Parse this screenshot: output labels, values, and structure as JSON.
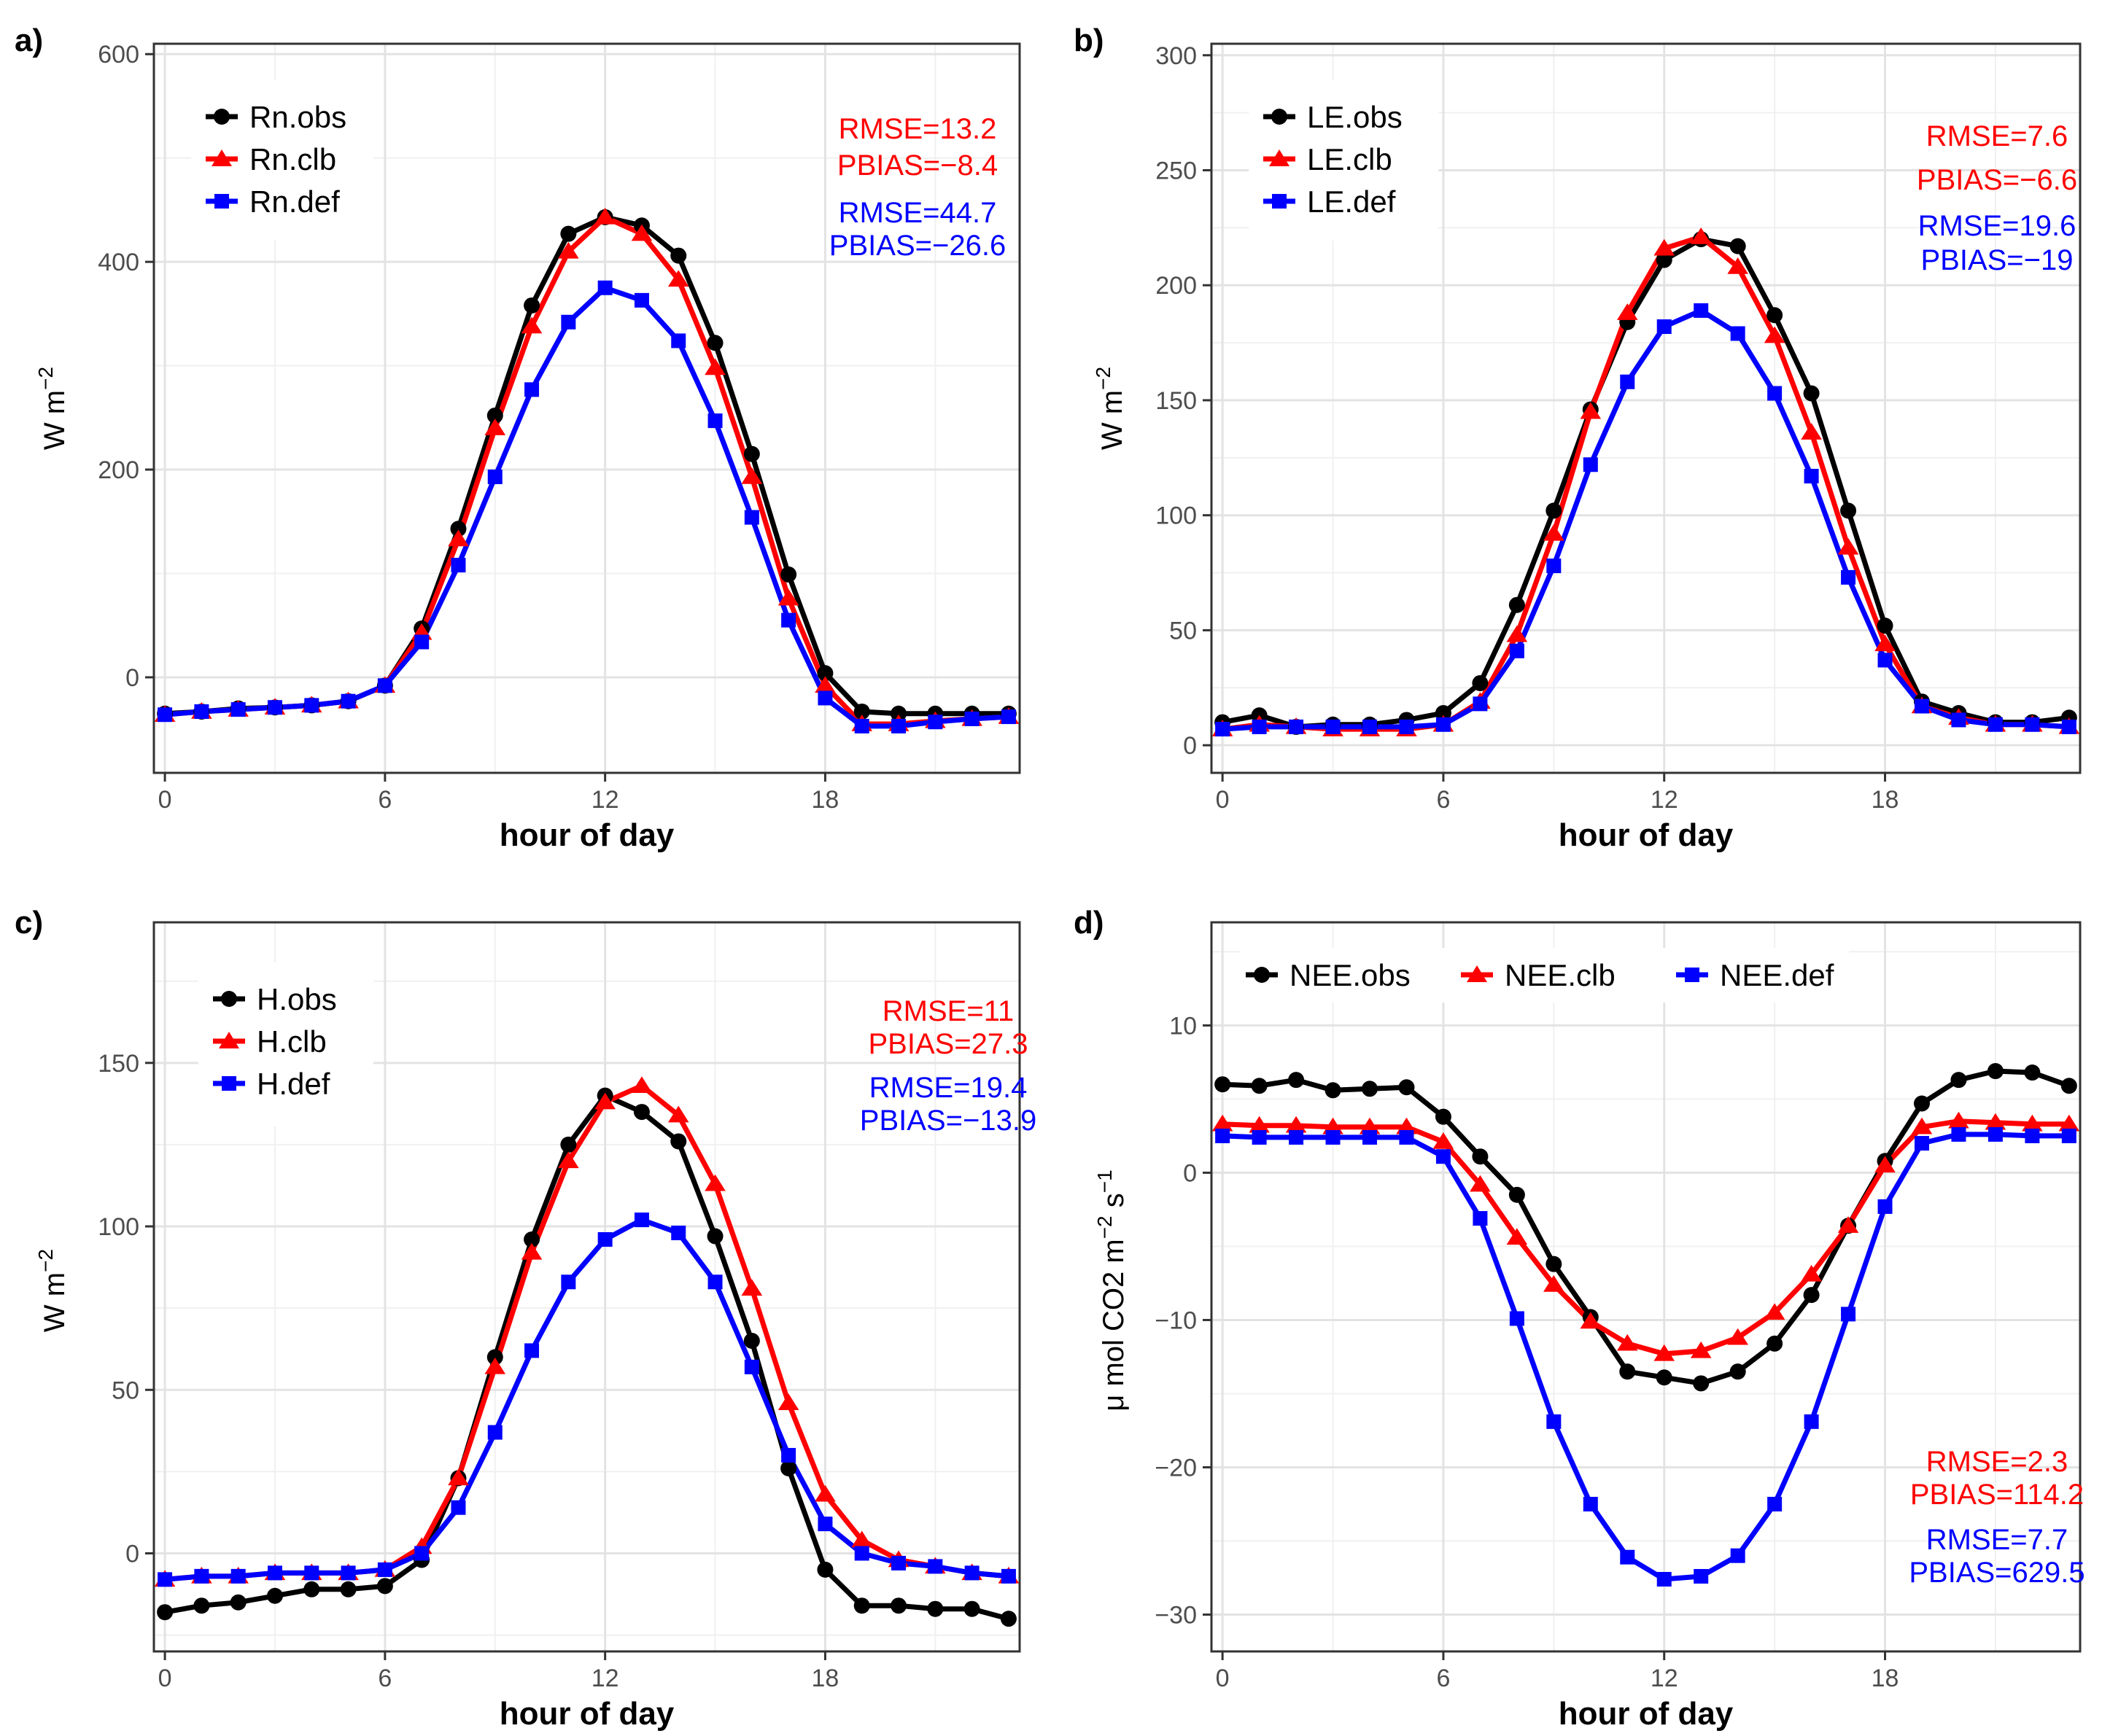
{
  "chart_data": [
    {
      "type": "line",
      "panel_label": "a)",
      "xlabel": "hour of day",
      "ylabel": {
        "base": "W m",
        "sup": "−2"
      },
      "x": [
        0,
        1,
        2,
        3,
        4,
        5,
        6,
        7,
        8,
        9,
        10,
        11,
        12,
        13,
        14,
        15,
        16,
        17,
        18,
        19,
        20,
        21,
        22,
        23
      ],
      "xlim": [
        -0.3,
        23.3
      ],
      "xticks": [
        0,
        6,
        12,
        18
      ],
      "xtick_labels": [
        "0",
        "6",
        "12",
        "18"
      ],
      "ylim": [
        -92,
        610
      ],
      "yticks": [
        0,
        200,
        400,
        600
      ],
      "ytick_labels": [
        "0",
        "200",
        "400",
        "600"
      ],
      "series": [
        {
          "name": "Rn.obs",
          "color": "#000000",
          "marker": "circle",
          "values": [
            -35,
            -33,
            -30,
            -29,
            -27,
            -23,
            -8,
            47,
            143,
            252,
            358,
            427,
            443,
            435,
            406,
            322,
            215,
            99,
            4,
            -33,
            -35,
            -35,
            -35,
            -35
          ]
        },
        {
          "name": "Rn.clb",
          "color": "#ff0000",
          "marker": "triangle",
          "values": [
            -36,
            -33,
            -31,
            -29,
            -27,
            -23,
            -8,
            43,
            133,
            240,
            338,
            410,
            443,
            427,
            383,
            298,
            193,
            76,
            -8,
            -45,
            -45,
            -42,
            -40,
            -38
          ]
        },
        {
          "name": "Rn.def",
          "color": "#0000ff",
          "marker": "square",
          "values": [
            -36,
            -33,
            -31,
            -29,
            -27,
            -23,
            -8,
            34,
            108,
            193,
            277,
            342,
            375,
            363,
            324,
            247,
            154,
            55,
            -20,
            -47,
            -47,
            -43,
            -40,
            -38
          ]
        }
      ],
      "legend": {
        "layout": "vertical",
        "position": "top-left",
        "labels": [
          "Rn.obs",
          "Rn.clb",
          "Rn.def"
        ]
      },
      "annotations": [
        {
          "text": "RMSE=13.2",
          "color": "#ff0000"
        },
        {
          "text": "PBIAS=−8.4",
          "color": "#ff0000"
        },
        {
          "text": "RMSE=44.7",
          "color": "#0000ff"
        },
        {
          "text": "PBIAS=−26.6",
          "color": "#0000ff"
        }
      ]
    },
    {
      "type": "line",
      "panel_label": "b)",
      "xlabel": "hour of day",
      "ylabel": {
        "base": "W m",
        "sup": "−2"
      },
      "x": [
        0,
        1,
        2,
        3,
        4,
        5,
        6,
        7,
        8,
        9,
        10,
        11,
        12,
        13,
        14,
        15,
        16,
        17,
        18,
        19,
        20,
        21,
        22,
        23
      ],
      "xlim": [
        -0.3,
        23.3
      ],
      "xticks": [
        0,
        6,
        12,
        18
      ],
      "xtick_labels": [
        "0",
        "6",
        "12",
        "18"
      ],
      "ylim": [
        -12,
        305
      ],
      "yticks": [
        0,
        50,
        100,
        150,
        200,
        250,
        300
      ],
      "ytick_labels": [
        "0",
        "50",
        "100",
        "150",
        "200",
        "250",
        "300"
      ],
      "series": [
        {
          "name": "LE.obs",
          "color": "#000000",
          "marker": "circle",
          "values": [
            10,
            13,
            8,
            9,
            9,
            11,
            14,
            27,
            61,
            102,
            146,
            184,
            211,
            220,
            217,
            187,
            153,
            102,
            52,
            19,
            14,
            10,
            10,
            12
          ]
        },
        {
          "name": "LE.clb",
          "color": "#ff0000",
          "marker": "triangle",
          "values": [
            7,
            9,
            8,
            7,
            7,
            7,
            9,
            19,
            48,
            92,
            145,
            188,
            216,
            221,
            208,
            178,
            136,
            86,
            44,
            17,
            12,
            9,
            9,
            8
          ]
        },
        {
          "name": "LE.def",
          "color": "#0000ff",
          "marker": "square",
          "values": [
            7,
            8,
            8,
            8,
            8,
            8,
            9,
            18,
            41,
            78,
            122,
            158,
            182,
            189,
            179,
            153,
            117,
            73,
            37,
            17,
            11,
            9,
            9,
            8
          ]
        }
      ],
      "legend": {
        "layout": "vertical",
        "position": "top-left",
        "labels": [
          "LE.obs",
          "LE.clb",
          "LE.def"
        ]
      },
      "annotations": [
        {
          "text": "RMSE=7.6",
          "color": "#ff0000"
        },
        {
          "text": "PBIAS=−6.6",
          "color": "#ff0000"
        },
        {
          "text": "RMSE=19.6",
          "color": "#0000ff"
        },
        {
          "text": "PBIAS=−19",
          "color": "#0000ff"
        }
      ]
    },
    {
      "type": "line",
      "panel_label": "c)",
      "xlabel": "hour of day",
      "ylabel": {
        "base": "W m",
        "sup": "−2"
      },
      "x": [
        0,
        1,
        2,
        3,
        4,
        5,
        6,
        7,
        8,
        9,
        10,
        11,
        12,
        13,
        14,
        15,
        16,
        17,
        18,
        19,
        20,
        21,
        22,
        23
      ],
      "xlim": [
        -0.3,
        23.3
      ],
      "xticks": [
        0,
        6,
        12,
        18
      ],
      "xtick_labels": [
        "0",
        "6",
        "12",
        "18"
      ],
      "ylim": [
        -30,
        193
      ],
      "yticks": [
        0,
        50,
        100,
        150
      ],
      "ytick_labels": [
        "0",
        "50",
        "100",
        "150"
      ],
      "series": [
        {
          "name": "H.obs",
          "color": "#000000",
          "marker": "circle",
          "values": [
            -18,
            -16,
            -15,
            -13,
            -11,
            -11,
            -10,
            -2,
            23,
            60,
            96,
            125,
            140,
            135,
            126,
            97,
            65,
            26,
            -5,
            -16,
            -16,
            -17,
            -17,
            -20
          ]
        },
        {
          "name": "H.clb",
          "color": "#ff0000",
          "marker": "triangle",
          "values": [
            -8,
            -7,
            -7,
            -6,
            -6,
            -6,
            -5,
            2,
            23,
            57,
            92,
            120,
            138,
            143,
            134,
            113,
            81,
            46,
            18,
            4,
            -2,
            -4,
            -6,
            -7
          ]
        },
        {
          "name": "H.def",
          "color": "#0000ff",
          "marker": "square",
          "values": [
            -8,
            -7,
            -7,
            -6,
            -6,
            -6,
            -5,
            0,
            14,
            37,
            62,
            83,
            96,
            102,
            98,
            83,
            57,
            30,
            9,
            0,
            -3,
            -4,
            -6,
            -7
          ]
        }
      ],
      "legend": {
        "layout": "vertical",
        "position": "top-left",
        "labels": [
          "H.obs",
          "H.clb",
          "H.def"
        ]
      },
      "annotations": [
        {
          "text": "RMSE=11",
          "color": "#ff0000"
        },
        {
          "text": "PBIAS=27.3",
          "color": "#ff0000"
        },
        {
          "text": "RMSE=19.4",
          "color": "#0000ff"
        },
        {
          "text": "PBIAS=−13.9",
          "color": "#0000ff"
        }
      ]
    },
    {
      "type": "line",
      "panel_label": "d)",
      "xlabel": "hour of day",
      "ylabel": {
        "base": "μ mol CO2 m",
        "sup": "−2",
        "mid": " s",
        "sup2": "−1"
      },
      "x": [
        0,
        1,
        2,
        3,
        4,
        5,
        6,
        7,
        8,
        9,
        10,
        11,
        12,
        13,
        14,
        15,
        16,
        17,
        18,
        19,
        20,
        21,
        22,
        23
      ],
      "xlim": [
        -0.3,
        23.3
      ],
      "xticks": [
        0,
        6,
        12,
        18
      ],
      "xtick_labels": [
        "0",
        "6",
        "12",
        "18"
      ],
      "ylim": [
        -32.5,
        17
      ],
      "yticks": [
        -30,
        -20,
        -10,
        0,
        10
      ],
      "ytick_labels": [
        "−30",
        "−20",
        "−10",
        "0",
        "10"
      ],
      "series": [
        {
          "name": "NEE.obs",
          "color": "#000000",
          "marker": "circle",
          "values": [
            6.0,
            5.9,
            6.3,
            5.6,
            5.7,
            5.8,
            3.8,
            1.1,
            -1.5,
            -6.2,
            -9.8,
            -13.5,
            -13.9,
            -14.3,
            -13.5,
            -11.6,
            -8.3,
            -3.6,
            0.8,
            4.7,
            6.3,
            6.9,
            6.8,
            5.9
          ]
        },
        {
          "name": "NEE.clb",
          "color": "#ff0000",
          "marker": "triangle",
          "values": [
            3.3,
            3.2,
            3.2,
            3.1,
            3.1,
            3.1,
            2.1,
            -0.8,
            -4.4,
            -7.6,
            -10.1,
            -11.6,
            -12.3,
            -12.1,
            -11.2,
            -9.5,
            -6.9,
            -3.6,
            0.5,
            3.1,
            3.5,
            3.4,
            3.3,
            3.3
          ]
        },
        {
          "name": "NEE.def",
          "color": "#0000ff",
          "marker": "square",
          "values": [
            2.5,
            2.4,
            2.4,
            2.4,
            2.4,
            2.4,
            1.1,
            -3.1,
            -9.9,
            -16.9,
            -22.5,
            -26.1,
            -27.6,
            -27.4,
            -26.0,
            -22.5,
            -16.9,
            -9.6,
            -2.3,
            2.0,
            2.6,
            2.6,
            2.5,
            2.5
          ]
        }
      ],
      "legend": {
        "layout": "horizontal",
        "position": "top",
        "labels": [
          "NEE.obs",
          "NEE.clb",
          "NEE.def"
        ]
      },
      "annotations": [
        {
          "text": "RMSE=2.3",
          "color": "#ff0000"
        },
        {
          "text": "PBIAS=114.2",
          "color": "#ff0000"
        },
        {
          "text": "RMSE=7.7",
          "color": "#0000ff"
        },
        {
          "text": "PBIAS=629.5",
          "color": "#0000ff"
        }
      ]
    }
  ]
}
